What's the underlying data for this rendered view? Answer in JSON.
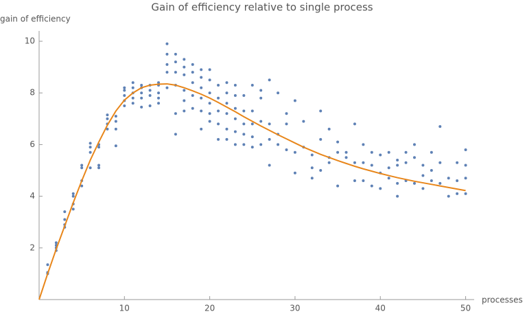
{
  "chart_data": {
    "type": "scatter",
    "title": "Gain of efficiency relative to single process",
    "y_label": "gain of efficiency",
    "x_label": "processes",
    "xlim": [
      0,
      51
    ],
    "ylim": [
      0,
      10.4
    ],
    "xticks": [
      10,
      20,
      30,
      40,
      50
    ],
    "yticks": [
      2,
      4,
      6,
      8,
      10
    ],
    "scatter": {
      "color": "#5e81b5",
      "groups": [
        {
          "x": 1,
          "y": [
            1.0,
            1.05,
            1.35
          ]
        },
        {
          "x": 2,
          "y": [
            1.9,
            2.0,
            2.1,
            2.2
          ]
        },
        {
          "x": 3,
          "y": [
            2.8,
            2.9,
            3.1,
            3.4
          ]
        },
        {
          "x": 4,
          "y": [
            3.5,
            3.7,
            4.0,
            4.1
          ]
        },
        {
          "x": 5,
          "y": [
            4.4,
            4.6,
            5.1,
            5.2
          ]
        },
        {
          "x": 6,
          "y": [
            5.1,
            5.7,
            5.9,
            6.05
          ]
        },
        {
          "x": 7,
          "y": [
            5.1,
            5.9,
            6.0,
            5.2
          ]
        },
        {
          "x": 8,
          "y": [
            6.6,
            6.8,
            7.0,
            7.15
          ]
        },
        {
          "x": 9,
          "y": [
            5.95,
            6.6,
            6.9,
            7.1
          ]
        },
        {
          "x": 10,
          "y": [
            7.5,
            7.7,
            7.9,
            8.1,
            8.2
          ]
        },
        {
          "x": 11,
          "y": [
            7.6,
            7.8,
            8.0,
            8.2,
            8.4
          ]
        },
        {
          "x": 12,
          "y": [
            7.45,
            7.8,
            8.0,
            8.2,
            8.3
          ]
        },
        {
          "x": 13,
          "y": [
            7.5,
            7.9,
            8.1,
            8.3
          ]
        },
        {
          "x": 14,
          "y": [
            7.6,
            7.8,
            8.0,
            8.3,
            8.4
          ]
        },
        {
          "x": 15,
          "y": [
            8.2,
            8.8,
            9.1,
            9.5,
            9.9
          ]
        },
        {
          "x": 16,
          "y": [
            6.4,
            7.2,
            8.3,
            8.8,
            9.2,
            9.5
          ]
        },
        {
          "x": 17,
          "y": [
            7.3,
            7.7,
            8.1,
            8.7,
            9.0,
            9.3
          ]
        },
        {
          "x": 18,
          "y": [
            7.4,
            7.9,
            8.4,
            8.8,
            9.1
          ]
        },
        {
          "x": 19,
          "y": [
            6.6,
            7.3,
            7.8,
            8.2,
            8.6,
            8.9
          ]
        },
        {
          "x": 20,
          "y": [
            6.9,
            7.2,
            7.6,
            8.0,
            8.5,
            8.9
          ]
        },
        {
          "x": 21,
          "y": [
            6.2,
            6.8,
            7.3,
            7.8,
            8.3
          ]
        },
        {
          "x": 22,
          "y": [
            6.2,
            6.6,
            7.2,
            7.6,
            8.0,
            8.4
          ]
        },
        {
          "x": 23,
          "y": [
            6.0,
            6.5,
            7.0,
            7.4,
            7.9,
            8.3
          ]
        },
        {
          "x": 24,
          "y": [
            6.0,
            6.4,
            6.8,
            7.3,
            7.9
          ]
        },
        {
          "x": 25,
          "y": [
            5.9,
            6.3,
            6.8,
            7.3,
            8.3
          ]
        },
        {
          "x": 26,
          "y": [
            6.0,
            6.9,
            7.8,
            8.1
          ]
        },
        {
          "x": 27,
          "y": [
            5.2,
            6.2,
            6.8,
            8.5
          ]
        },
        {
          "x": 28,
          "y": [
            6.0,
            6.4,
            8.0
          ]
        },
        {
          "x": 29,
          "y": [
            5.8,
            6.8,
            7.2
          ]
        },
        {
          "x": 30,
          "y": [
            4.9,
            5.7,
            7.7
          ]
        },
        {
          "x": 31,
          "y": [
            5.9,
            6.9
          ]
        },
        {
          "x": 32,
          "y": [
            4.7,
            5.1,
            5.6
          ]
        },
        {
          "x": 33,
          "y": [
            5.0,
            6.2,
            7.3
          ]
        },
        {
          "x": 34,
          "y": [
            5.3,
            5.5,
            6.6
          ]
        },
        {
          "x": 35,
          "y": [
            4.4,
            5.7,
            6.1
          ]
        },
        {
          "x": 36,
          "y": [
            5.5,
            5.7
          ]
        },
        {
          "x": 37,
          "y": [
            4.6,
            5.3,
            6.8
          ]
        },
        {
          "x": 38,
          "y": [
            4.6,
            5.3,
            6.0
          ]
        },
        {
          "x": 39,
          "y": [
            4.4,
            5.2,
            5.7
          ]
        },
        {
          "x": 40,
          "y": [
            4.3,
            4.9,
            5.6
          ]
        },
        {
          "x": 41,
          "y": [
            4.7,
            5.1,
            5.7
          ]
        },
        {
          "x": 42,
          "y": [
            4.0,
            4.5,
            5.2,
            5.4
          ]
        },
        {
          "x": 43,
          "y": [
            4.6,
            5.3,
            5.7
          ]
        },
        {
          "x": 44,
          "y": [
            4.5,
            5.5,
            6.0
          ]
        },
        {
          "x": 45,
          "y": [
            4.3,
            4.8,
            5.2
          ]
        },
        {
          "x": 46,
          "y": [
            4.6,
            5.0,
            5.7
          ]
        },
        {
          "x": 47,
          "y": [
            4.5,
            5.3,
            6.7
          ]
        },
        {
          "x": 48,
          "y": [
            4.0,
            4.7
          ]
        },
        {
          "x": 49,
          "y": [
            4.1,
            4.6,
            5.3
          ]
        },
        {
          "x": 50,
          "y": [
            4.1,
            4.7,
            5.2,
            5.8
          ]
        }
      ]
    },
    "fit": {
      "color": "#e8861a",
      "x": [
        0,
        1,
        2,
        3,
        4,
        5,
        6,
        7,
        8,
        9,
        10,
        11,
        12,
        13,
        14,
        15,
        16,
        17,
        18,
        19,
        20,
        21,
        22,
        23,
        24,
        25,
        26,
        27,
        28,
        29,
        30,
        31,
        32,
        33,
        34,
        35,
        36,
        37,
        38,
        39,
        40,
        41,
        42,
        43,
        44,
        45,
        46,
        47,
        48,
        49,
        50
      ],
      "values": [
        0,
        1.0,
        1.95,
        2.85,
        3.75,
        4.6,
        5.4,
        6.1,
        6.75,
        7.3,
        7.72,
        8.0,
        8.2,
        8.3,
        8.34,
        8.35,
        8.3,
        8.2,
        8.08,
        7.95,
        7.8,
        7.63,
        7.45,
        7.27,
        7.08,
        6.9,
        6.72,
        6.55,
        6.38,
        6.22,
        6.06,
        5.9,
        5.76,
        5.62,
        5.5,
        5.38,
        5.27,
        5.16,
        5.06,
        4.97,
        4.88,
        4.8,
        4.72,
        4.65,
        4.58,
        4.52,
        4.46,
        4.4,
        4.34,
        4.28,
        4.22
      ]
    }
  }
}
